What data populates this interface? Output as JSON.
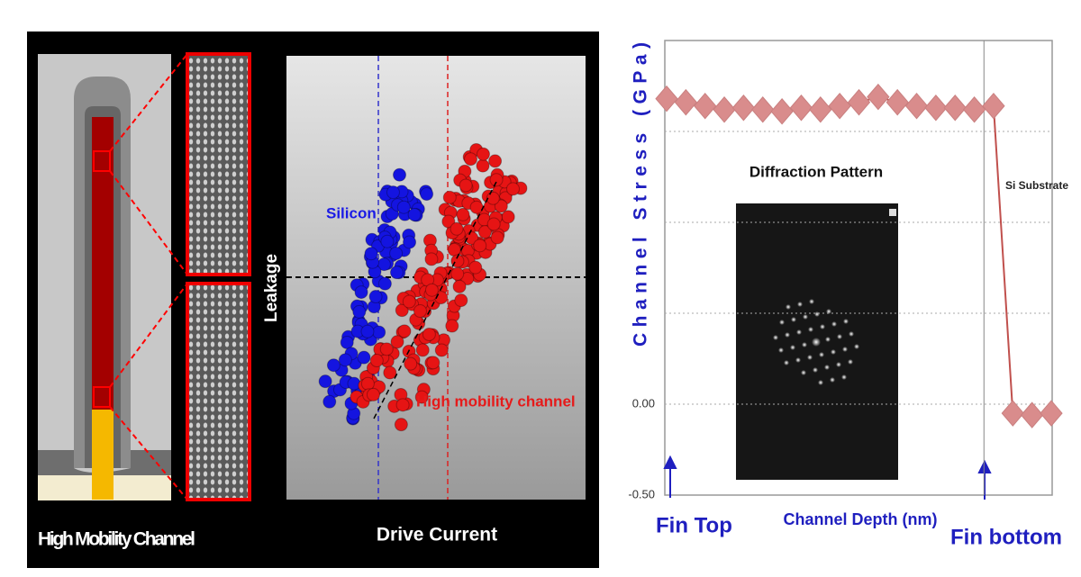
{
  "left_figure": {
    "fin_caption": "High Mobility Channel",
    "scatter": {
      "y_label": "Leakage",
      "x_label": "Drive Current",
      "silicon_label": "Silicon",
      "high_mobility_label": "High mobility channel"
    }
  },
  "chart_data": {
    "type": "line",
    "y_label": "Channel Stress (GPa)",
    "x_label": "Channel Depth (nm)",
    "x": [
      0,
      1,
      2,
      3,
      4,
      5,
      6,
      7,
      8,
      9,
      10,
      11,
      12,
      13,
      14,
      15,
      16,
      17,
      18,
      19,
      20
    ],
    "series": [
      {
        "color": "#d98c8c",
        "values": [
          1.68,
          1.66,
          1.64,
          1.62,
          1.63,
          1.62,
          1.61,
          1.63,
          1.62,
          1.64,
          1.66,
          1.69,
          1.66,
          1.64,
          1.63,
          1.63,
          1.62,
          1.64,
          -0.05,
          -0.06,
          -0.05
        ]
      }
    ],
    "xlim": [
      0,
      20
    ],
    "ylim": [
      -0.5,
      2.0
    ],
    "yticks": [
      {
        "value": -0.5,
        "label": "-0.50"
      },
      {
        "value": 0,
        "label": "0.00"
      }
    ],
    "grid_lines": [
      0.5,
      1.0,
      1.5
    ],
    "annotations": {
      "fin_top": "Fin Top",
      "fin_bottom": "Fin bottom",
      "fin_bottom_at": 16.5,
      "substrate": "Si Substrate",
      "inset_title": "Diffraction Pattern"
    }
  }
}
